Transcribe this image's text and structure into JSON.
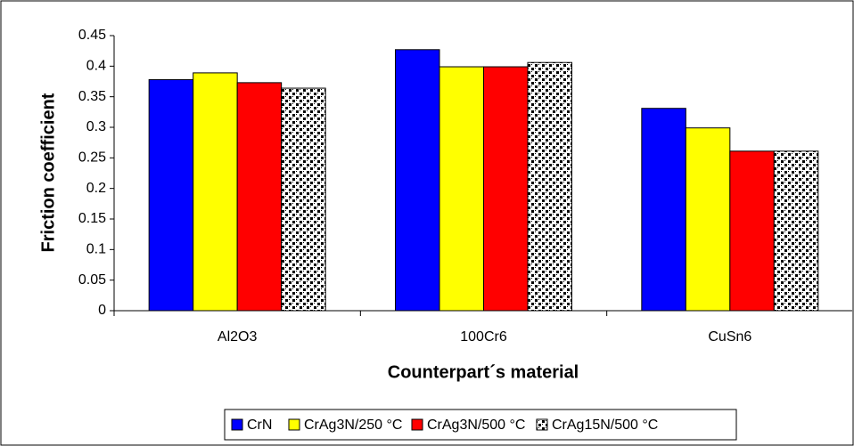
{
  "chart_data": {
    "type": "bar",
    "title": "",
    "xlabel": "Counterpart´s material",
    "ylabel": "Friction coefficient",
    "ylim": [
      0,
      0.45
    ],
    "yticks": [
      "0",
      "0.05",
      "0.1",
      "0.15",
      "0.2",
      "0.25",
      "0.3",
      "0.35",
      "0.4",
      "0.45"
    ],
    "categories": [
      "Al2O3",
      "100Cr6",
      "CuSn6"
    ],
    "series": [
      {
        "name": "CrN",
        "values": [
          0.378,
          0.427,
          0.331
        ],
        "color": "#0000FF",
        "pattern": "solid"
      },
      {
        "name": "CrAg3N/250 °C",
        "values": [
          0.389,
          0.399,
          0.299
        ],
        "color": "#FFFF00",
        "pattern": "solid"
      },
      {
        "name": "CrAg3N/500 °C",
        "values": [
          0.373,
          0.399,
          0.261
        ],
        "color": "#FF0000",
        "pattern": "solid"
      },
      {
        "name": "CrAg15N/500 °C",
        "values": [
          0.364,
          0.406,
          0.261
        ],
        "color": "#000000",
        "pattern": "checker-dots"
      }
    ],
    "grid": false,
    "legend": "bottom"
  }
}
